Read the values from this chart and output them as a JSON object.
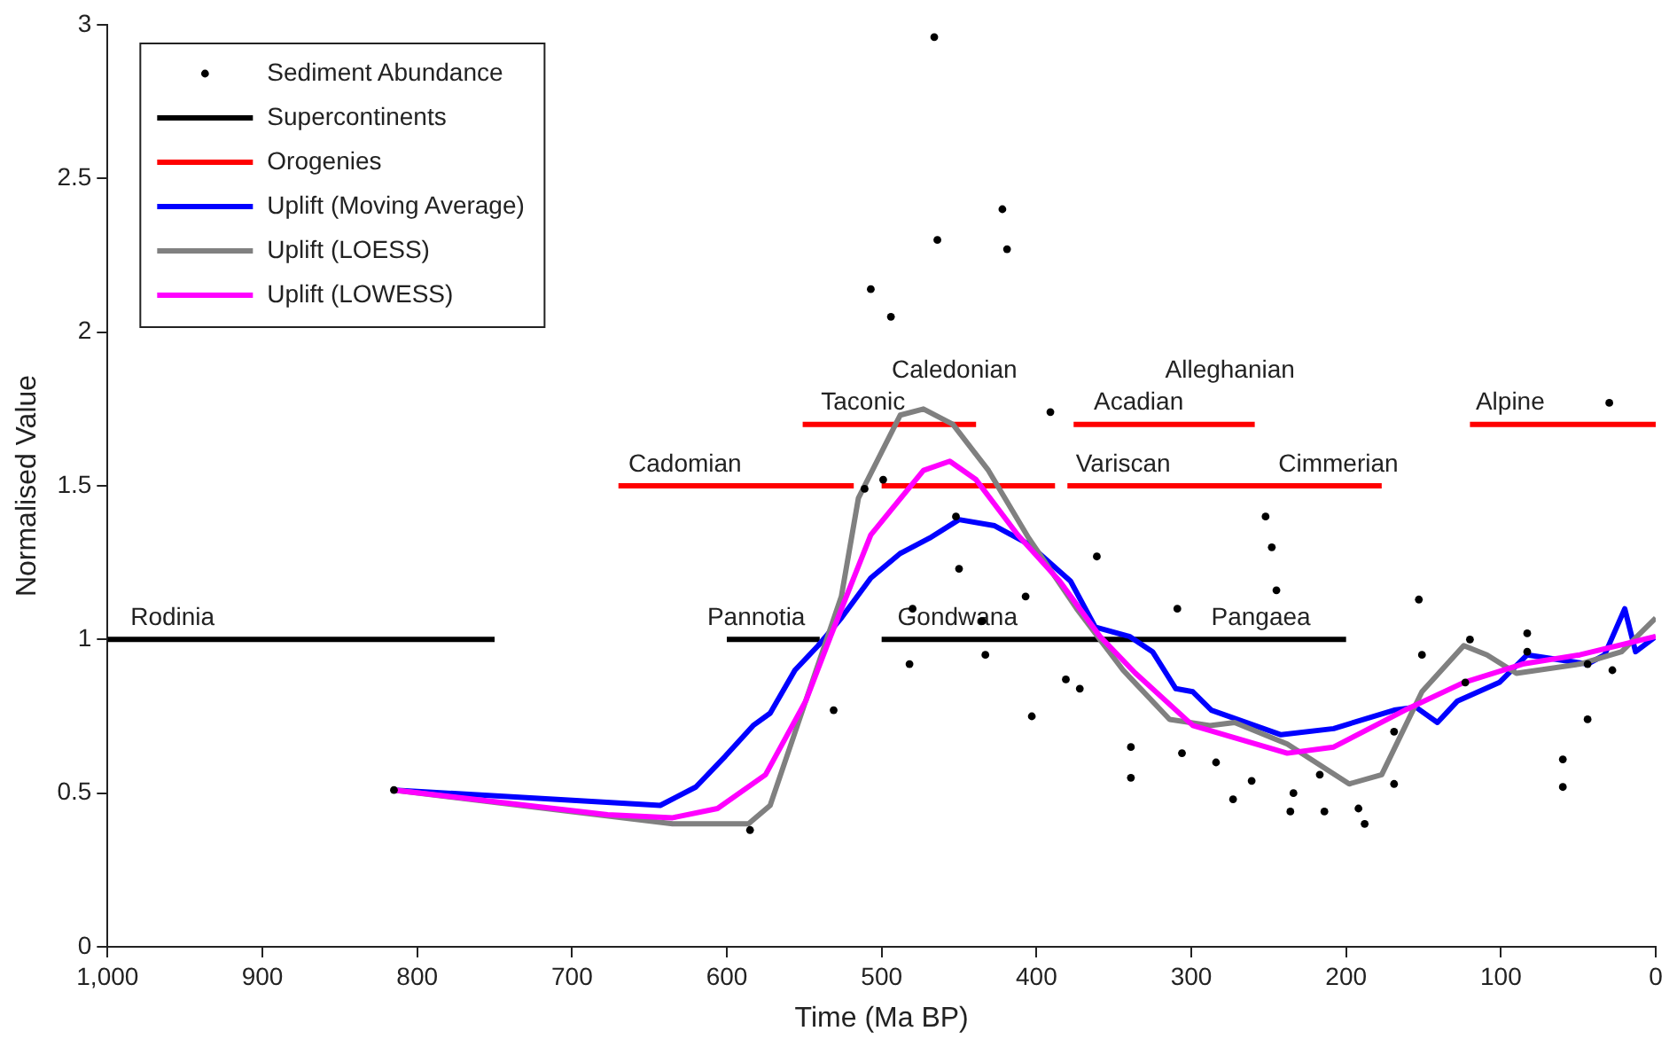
{
  "chart_data": {
    "type": "line",
    "xlabel": "Time (Ma BP)",
    "ylabel": "Normalised Value",
    "xlim": [
      1000,
      0
    ],
    "xticks": [
      {
        "value": 1000,
        "label": "1,000"
      },
      900,
      800,
      700,
      600,
      500,
      400,
      300,
      200,
      100,
      0
    ],
    "ylim": [
      0,
      3
    ],
    "yticks": [
      0,
      0.5,
      1,
      1.5,
      2,
      2.5,
      3
    ],
    "grid": false,
    "legend": "top left",
    "annotations": [
      {
        "text": "Rodinia",
        "x": 958,
        "y": 1
      },
      {
        "text": "Pannotia",
        "x": 581,
        "y": 1
      },
      {
        "text": "Gondwana",
        "x": 451,
        "y": 1
      },
      {
        "text": "Pangaea",
        "x": 255,
        "y": 1
      },
      {
        "text": "Cadomian",
        "x": 627,
        "y": 1.5
      },
      {
        "text": "Taconic",
        "x": 512,
        "y": 1.7
      },
      {
        "text": "Caledonian",
        "x": 453,
        "y": 1.7
      },
      {
        "text": "Acadian",
        "x": 334,
        "y": 1.7
      },
      {
        "text": "Alleghanian",
        "x": 275,
        "y": 1.7
      },
      {
        "text": "Variscan",
        "x": 344,
        "y": 1.5
      },
      {
        "text": "Cimmerian",
        "x": 205,
        "y": 1.5
      },
      {
        "text": "Alpine",
        "x": 94,
        "y": 1.7
      }
    ],
    "series": [
      {
        "name": "Sediment Abundance",
        "type": "scatter",
        "marker": "circle",
        "color": "#000000",
        "x": [
          815,
          585,
          531,
          511,
          507,
          499,
          494,
          482,
          480,
          466,
          464,
          452,
          450,
          435,
          433,
          422,
          419,
          407,
          403,
          391,
          381,
          372,
          361,
          339,
          339,
          309,
          306,
          284,
          273,
          261,
          252,
          248,
          245,
          236,
          234,
          217,
          214,
          192,
          188,
          169,
          169,
          153,
          151,
          123,
          120,
          83,
          83,
          60,
          60,
          44,
          44,
          30,
          28
        ],
        "values": [
          0.51,
          0.38,
          0.77,
          1.49,
          2.14,
          1.52,
          2.05,
          0.92,
          1.1,
          2.96,
          2.3,
          1.4,
          1.23,
          1.06,
          0.95,
          2.4,
          2.27,
          1.14,
          0.75,
          1.74,
          0.87,
          0.84,
          1.27,
          0.65,
          0.55,
          1.1,
          0.63,
          0.6,
          0.48,
          0.54,
          1.4,
          1.3,
          1.16,
          0.44,
          0.5,
          0.56,
          0.44,
          0.45,
          0.4,
          0.53,
          0.7,
          1.13,
          0.95,
          0.86,
          1,
          1.02,
          0.96,
          0.61,
          0.52,
          0.92,
          0.74,
          1.77,
          0.9
        ]
      },
      {
        "name": "Supercontinents",
        "color": "#000000",
        "x": [
          1000,
          750,
          null,
          600,
          540,
          null,
          500,
          200
        ],
        "values": [
          1,
          1,
          null,
          1,
          1,
          null,
          1,
          1
        ]
      },
      {
        "name": "Orogenies",
        "color": "#ff0000",
        "x": [
          670,
          518,
          null,
          500,
          388,
          null,
          380,
          177,
          null,
          551,
          439,
          null,
          376,
          259,
          null,
          120,
          0
        ],
        "values": [
          1.5,
          1.5,
          null,
          1.5,
          1.5,
          null,
          1.5,
          1.5,
          null,
          1.7,
          1.7,
          null,
          1.7,
          1.7,
          null,
          1.7,
          1.7
        ]
      },
      {
        "name": "Uplift (Moving Average)",
        "color": "#0000ff",
        "x": [
          815,
          643,
          620,
          601,
          583,
          572,
          556,
          541,
          526,
          507,
          488,
          469,
          450,
          427,
          405,
          378,
          362,
          340,
          325,
          310,
          299,
          287,
          242,
          208,
          169,
          155,
          141,
          128,
          101,
          83,
          44,
          33,
          20,
          13,
          0
        ],
        "values": [
          0.51,
          0.46,
          0.52,
          0.62,
          0.72,
          0.76,
          0.9,
          0.98,
          1.07,
          1.2,
          1.28,
          1.33,
          1.39,
          1.37,
          1.31,
          1.19,
          1.04,
          1.01,
          0.96,
          0.84,
          0.83,
          0.77,
          0.69,
          0.71,
          0.77,
          0.78,
          0.73,
          0.8,
          0.86,
          0.95,
          0.92,
          0.95,
          1.1,
          0.96,
          1.01
        ]
      },
      {
        "name": "Uplift (LOESS)",
        "color": "#808080",
        "x": [
          815,
          635,
          586,
          572,
          545,
          526,
          515,
          488,
          473,
          454,
          431,
          405,
          374,
          344,
          314,
          288,
          272,
          238,
          198,
          177,
          151,
          124,
          109,
          90,
          49,
          22,
          0
        ],
        "values": [
          0.51,
          0.4,
          0.4,
          0.46,
          0.86,
          1.14,
          1.46,
          1.73,
          1.75,
          1.7,
          1.55,
          1.33,
          1.1,
          0.9,
          0.74,
          0.72,
          0.73,
          0.66,
          0.53,
          0.56,
          0.83,
          0.98,
          0.95,
          0.89,
          0.92,
          0.96,
          1.07
        ]
      },
      {
        "name": "Uplift (LOWESS)",
        "color": "#ff00ff",
        "x": [
          815,
          677,
          635,
          606,
          575,
          549,
          533,
          507,
          473,
          456,
          439,
          412,
          385,
          359,
          336,
          299,
          238,
          208,
          162,
          124,
          86,
          49,
          0
        ],
        "values": [
          0.51,
          0.43,
          0.42,
          0.45,
          0.56,
          0.8,
          1.01,
          1.34,
          1.55,
          1.58,
          1.52,
          1.34,
          1.19,
          1.01,
          0.89,
          0.72,
          0.63,
          0.65,
          0.77,
          0.86,
          0.92,
          0.95,
          1.01
        ]
      }
    ]
  }
}
